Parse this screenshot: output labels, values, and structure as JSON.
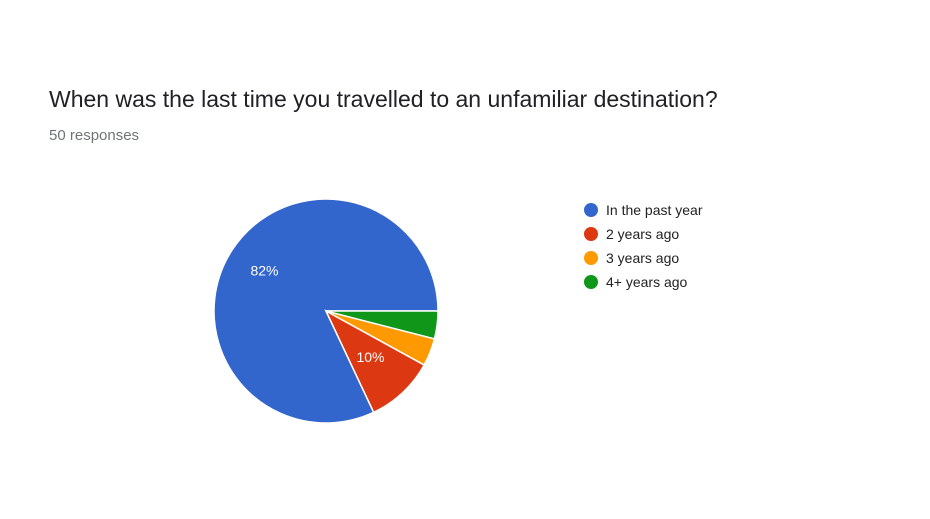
{
  "question": {
    "title": "When was the last time you travelled to an unfamiliar destination?",
    "responses": "50 responses"
  },
  "chart_data": {
    "type": "pie",
    "title": "When was the last time you travelled to an unfamiliar destination?",
    "total_responses": 50,
    "legend_position": "right",
    "slices": [
      {
        "label": "In the past year",
        "value": 82,
        "display": "82%",
        "color": "#3366cc"
      },
      {
        "label": "2 years ago",
        "value": 10,
        "display": "10%",
        "color": "#dc3912"
      },
      {
        "label": "3 years ago",
        "value": 4,
        "display": "",
        "color": "#ff9900"
      },
      {
        "label": "4+ years ago",
        "value": 4,
        "display": "",
        "color": "#109618"
      }
    ]
  }
}
